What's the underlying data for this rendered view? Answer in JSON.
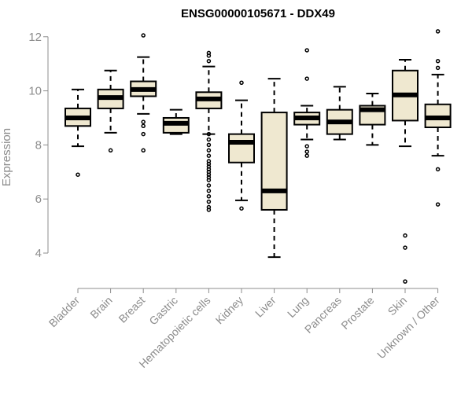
{
  "chart_data": {
    "type": "box",
    "title": "ENSG00000105671 - DDX49",
    "ylabel": "Expression",
    "xlabel": "",
    "ylim": [
      2.75,
      12.4
    ],
    "yticks": [
      4,
      6,
      8,
      10,
      12
    ],
    "box_fill": "#efe8d0",
    "box_stroke": "#000000",
    "axis_color": "#8c8c8c",
    "categories": [
      "Bladder",
      "Brain",
      "Breast",
      "Gastric",
      "Hematopoietic cells",
      "Kidney",
      "Liver",
      "Lung",
      "Pancreas",
      "Prostate",
      "Skin",
      "Unknown / Other"
    ],
    "boxes": [
      {
        "category": "Bladder",
        "whisker_low": 7.95,
        "q1": 8.7,
        "median": 9.0,
        "q3": 9.35,
        "whisker_high": 10.05,
        "outliers": [
          6.9
        ]
      },
      {
        "category": "Brain",
        "whisker_low": 8.45,
        "q1": 9.35,
        "median": 9.75,
        "q3": 10.05,
        "whisker_high": 10.75,
        "outliers": [
          7.8
        ]
      },
      {
        "category": "Breast",
        "whisker_low": 9.15,
        "q1": 9.8,
        "median": 10.05,
        "q3": 10.35,
        "whisker_high": 11.25,
        "outliers": [
          12.05,
          8.85,
          8.7,
          8.4,
          7.8
        ]
      },
      {
        "category": "Gastric",
        "whisker_low": 8.4,
        "q1": 8.45,
        "median": 8.8,
        "q3": 9.0,
        "whisker_high": 9.3,
        "outliers": []
      },
      {
        "category": "Hematopoietic cells",
        "whisker_low": 8.4,
        "q1": 9.35,
        "median": 9.7,
        "q3": 9.95,
        "whisker_high": 10.9,
        "outliers": [
          11.4,
          11.3,
          11.1,
          8.4,
          8.2,
          8.0,
          7.8,
          7.6,
          7.4,
          7.3,
          7.2,
          7.1,
          7.0,
          6.9,
          6.8,
          6.7,
          6.5,
          6.3,
          6.1,
          5.9,
          5.7,
          5.6
        ]
      },
      {
        "category": "Kidney",
        "whisker_low": 5.95,
        "q1": 7.35,
        "median": 8.1,
        "q3": 8.4,
        "whisker_high": 9.65,
        "outliers": [
          10.3,
          5.65
        ]
      },
      {
        "category": "Liver",
        "whisker_low": 3.85,
        "q1": 5.6,
        "median": 6.3,
        "q3": 9.2,
        "whisker_high": 10.45,
        "outliers": []
      },
      {
        "category": "Lung",
        "whisker_low": 8.2,
        "q1": 8.75,
        "median": 9.0,
        "q3": 9.2,
        "whisker_high": 9.45,
        "outliers": [
          11.5,
          10.45,
          7.95,
          7.75,
          7.6
        ]
      },
      {
        "category": "Pancreas",
        "whisker_low": 8.2,
        "q1": 8.4,
        "median": 8.85,
        "q3": 9.3,
        "whisker_high": 10.15,
        "outliers": []
      },
      {
        "category": "Prostate",
        "whisker_low": 8.0,
        "q1": 8.75,
        "median": 9.3,
        "q3": 9.45,
        "whisker_high": 9.9,
        "outliers": []
      },
      {
        "category": "Skin",
        "whisker_low": 7.95,
        "q1": 8.9,
        "median": 9.85,
        "q3": 10.75,
        "whisker_high": 11.15,
        "outliers": [
          4.65,
          4.2,
          2.95
        ]
      },
      {
        "category": "Unknown / Other",
        "whisker_low": 7.6,
        "q1": 8.65,
        "median": 9.0,
        "q3": 9.5,
        "whisker_high": 10.6,
        "outliers": [
          12.2,
          11.1,
          10.85,
          7.1,
          5.8
        ]
      }
    ]
  }
}
